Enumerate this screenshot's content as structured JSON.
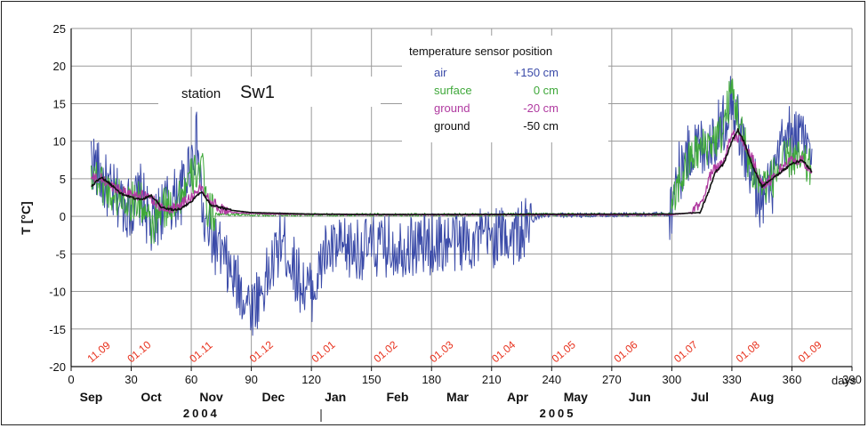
{
  "chart_data": {
    "type": "line",
    "title": "",
    "ylabel": "T [°C]",
    "xlabel_unit": "days",
    "station_label": "station",
    "station_name": "Sw1",
    "legend_title": "temperature sensor position",
    "xlim": [
      0,
      390
    ],
    "ylim": [
      -20,
      25
    ],
    "x_ticks": [
      0,
      30,
      60,
      90,
      120,
      150,
      180,
      210,
      240,
      270,
      300,
      330,
      360,
      390
    ],
    "y_ticks": [
      -20,
      -15,
      -10,
      -5,
      0,
      5,
      10,
      15,
      20,
      25
    ],
    "month_labels": [
      {
        "label": "Sep",
        "x": 10
      },
      {
        "label": "Oct",
        "x": 40
      },
      {
        "label": "Nov",
        "x": 70
      },
      {
        "label": "Dec",
        "x": 101
      },
      {
        "label": "Jan",
        "x": 132
      },
      {
        "label": "Feb",
        "x": 163
      },
      {
        "label": "Mar",
        "x": 193
      },
      {
        "label": "Apr",
        "x": 223
      },
      {
        "label": "May",
        "x": 252
      },
      {
        "label": "Jun",
        "x": 284
      },
      {
        "label": "Jul",
        "x": 314
      },
      {
        "label": "Aug",
        "x": 345
      }
    ],
    "years": [
      {
        "label": "2004",
        "x": 65
      },
      {
        "label": "2005",
        "x": 243
      }
    ],
    "date_markers": [
      {
        "label": "11.09",
        "x": 10
      },
      {
        "label": "01.10",
        "x": 30
      },
      {
        "label": "01.11",
        "x": 61
      },
      {
        "label": "01.12",
        "x": 91
      },
      {
        "label": "01.01",
        "x": 122
      },
      {
        "label": "01.02",
        "x": 153
      },
      {
        "label": "01.03",
        "x": 181
      },
      {
        "label": "01.04",
        "x": 212
      },
      {
        "label": "01.05",
        "x": 242
      },
      {
        "label": "01.06",
        "x": 273
      },
      {
        "label": "01.07",
        "x": 303
      },
      {
        "label": "01.08",
        "x": 334
      },
      {
        "label": "01.09",
        "x": 365
      }
    ],
    "series": [
      {
        "name": "air",
        "position": "+150 cm",
        "color": "#3a4aa8",
        "noise": 4.2,
        "width": 1,
        "points": [
          [
            10,
            8
          ],
          [
            15,
            5
          ],
          [
            20,
            3
          ],
          [
            25,
            2
          ],
          [
            30,
            1
          ],
          [
            35,
            3
          ],
          [
            40,
            -2
          ],
          [
            45,
            1
          ],
          [
            50,
            2
          ],
          [
            55,
            3
          ],
          [
            60,
            8
          ],
          [
            63,
            10
          ],
          [
            66,
            -1
          ],
          [
            70,
            -3
          ],
          [
            75,
            -5
          ],
          [
            80,
            -8
          ],
          [
            85,
            -10
          ],
          [
            90,
            -12
          ],
          [
            95,
            -10
          ],
          [
            100,
            -7
          ],
          [
            105,
            -3
          ],
          [
            110,
            -6
          ],
          [
            115,
            -9
          ],
          [
            120,
            -10
          ],
          [
            124,
            -8
          ],
          [
            126,
            -5
          ],
          [
            130,
            -4.6
          ],
          [
            150,
            -4.2
          ],
          [
            180,
            -3.7
          ],
          [
            210,
            -2.8
          ],
          [
            226,
            -2.2
          ],
          [
            230,
            -0.6
          ],
          [
            235,
            0.1
          ],
          [
            270,
            0.2
          ],
          [
            299,
            0.3
          ],
          [
            302,
            5
          ],
          [
            310,
            9
          ],
          [
            320,
            10
          ],
          [
            325,
            12
          ],
          [
            330,
            16
          ],
          [
            335,
            10
          ],
          [
            340,
            5
          ],
          [
            345,
            2
          ],
          [
            350,
            4
          ],
          [
            355,
            9
          ],
          [
            360,
            11
          ],
          [
            365,
            10
          ],
          [
            370,
            9
          ]
        ]
      },
      {
        "name": "surface",
        "position": "0 cm",
        "color": "#3fa83a",
        "noise": 2.8,
        "width": 1,
        "points": [
          [
            10,
            6
          ],
          [
            15,
            4.5
          ],
          [
            20,
            3
          ],
          [
            25,
            2.5
          ],
          [
            30,
            2
          ],
          [
            35,
            2
          ],
          [
            40,
            -2
          ],
          [
            45,
            1
          ],
          [
            50,
            1.5
          ],
          [
            55,
            3
          ],
          [
            60,
            5
          ],
          [
            65,
            7
          ],
          [
            68,
            1
          ],
          [
            72,
            0.3
          ],
          [
            90,
            0.2
          ],
          [
            130,
            0.2
          ],
          [
            300,
            0.25
          ],
          [
            303,
            4
          ],
          [
            310,
            8
          ],
          [
            320,
            10
          ],
          [
            325,
            11
          ],
          [
            330,
            17
          ],
          [
            335,
            11
          ],
          [
            340,
            6
          ],
          [
            345,
            4
          ],
          [
            350,
            5
          ],
          [
            355,
            7
          ],
          [
            360,
            8
          ],
          [
            365,
            7
          ],
          [
            370,
            6
          ]
        ]
      },
      {
        "name": "ground",
        "position": "-20 cm",
        "color": "#b03aa0",
        "noise": 0.7,
        "width": 1.3,
        "points": [
          [
            10,
            5
          ],
          [
            15,
            5
          ],
          [
            20,
            4
          ],
          [
            30,
            3
          ],
          [
            40,
            2.5
          ],
          [
            45,
            1
          ],
          [
            50,
            1
          ],
          [
            60,
            2.5
          ],
          [
            65,
            3.8
          ],
          [
            70,
            2
          ],
          [
            75,
            1
          ],
          [
            80,
            0.5
          ],
          [
            100,
            0.3
          ],
          [
            150,
            0.2
          ],
          [
            300,
            0.2
          ],
          [
            310,
            0.5
          ],
          [
            315,
            2
          ],
          [
            320,
            6
          ],
          [
            325,
            7
          ],
          [
            330,
            11
          ],
          [
            335,
            10
          ],
          [
            340,
            8
          ],
          [
            345,
            4
          ],
          [
            350,
            5
          ],
          [
            355,
            6.5
          ],
          [
            360,
            7.5
          ],
          [
            365,
            7.5
          ],
          [
            370,
            6
          ]
        ]
      },
      {
        "name": "ground",
        "position": "-50 cm",
        "color": "#111111",
        "noise": 0.15,
        "width": 1.6,
        "points": [
          [
            10,
            4
          ],
          [
            15,
            5.2
          ],
          [
            20,
            4.2
          ],
          [
            25,
            3
          ],
          [
            30,
            2.5
          ],
          [
            35,
            2.2
          ],
          [
            40,
            2.8
          ],
          [
            45,
            1.2
          ],
          [
            50,
            0.9
          ],
          [
            55,
            1
          ],
          [
            60,
            2
          ],
          [
            65,
            3.3
          ],
          [
            70,
            1.5
          ],
          [
            80,
            0.8
          ],
          [
            90,
            0.5
          ],
          [
            120,
            0.3
          ],
          [
            150,
            0.25
          ],
          [
            300,
            0.3
          ],
          [
            314,
            0.5
          ],
          [
            318,
            3
          ],
          [
            322,
            6
          ],
          [
            326,
            7
          ],
          [
            330,
            10
          ],
          [
            333,
            11.5
          ],
          [
            336,
            10
          ],
          [
            340,
            7
          ],
          [
            345,
            4
          ],
          [
            350,
            5
          ],
          [
            355,
            6
          ],
          [
            360,
            7
          ],
          [
            365,
            7.5
          ],
          [
            370,
            6
          ]
        ]
      }
    ]
  }
}
